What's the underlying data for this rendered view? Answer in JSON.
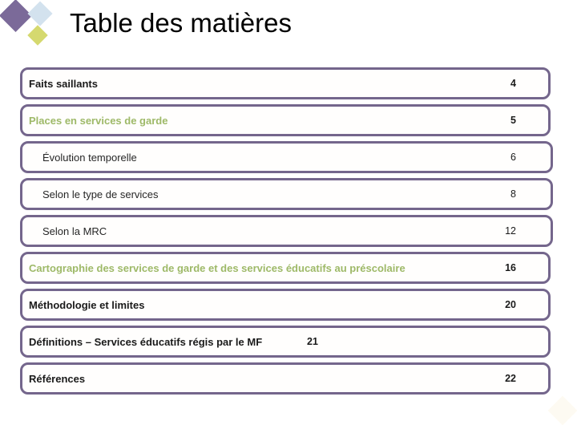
{
  "slide": {
    "title": "Table des matières"
  },
  "logo": {
    "diamonds": [
      "purple",
      "light-blue",
      "yellow-green"
    ]
  },
  "toc": {
    "items": [
      {
        "label": "Faits saillants",
        "page": "4",
        "sub": false,
        "accent": false,
        "page_inline": false
      },
      {
        "label": "Places en services de garde",
        "page": "5",
        "sub": false,
        "accent": true,
        "page_inline": false
      },
      {
        "label": "Évolution temporelle",
        "page": "6",
        "sub": true,
        "accent": false,
        "page_inline": false
      },
      {
        "label": "Selon le type de services",
        "page": "8",
        "sub": true,
        "accent": false,
        "page_inline": false
      },
      {
        "label": "Selon la MRC",
        "page": "12",
        "sub": true,
        "accent": false,
        "page_inline": false
      },
      {
        "label": "Cartographie des services de garde et des services éducatifs au préscolaire",
        "page": "16",
        "sub": false,
        "accent": true,
        "page_inline": false
      },
      {
        "label": "Méthodologie et limites",
        "page": "20",
        "sub": false,
        "accent": false,
        "page_inline": false
      },
      {
        "label": "Définitions – Services éducatifs régis par le MF",
        "page": "21",
        "sub": false,
        "accent": false,
        "page_inline": true
      },
      {
        "label": "Références",
        "page": "22",
        "sub": false,
        "accent": false,
        "page_inline": false
      }
    ]
  },
  "colors": {
    "background": "#ffffff",
    "border": "#74668c",
    "accent_green": "#9eb968",
    "text": "#1a1a1a",
    "diamond_purple": "#7b6a99",
    "diamond_blue": "#d3e2ee",
    "diamond_yellow": "#d5d96f",
    "watermark": "#fdfaf2"
  }
}
